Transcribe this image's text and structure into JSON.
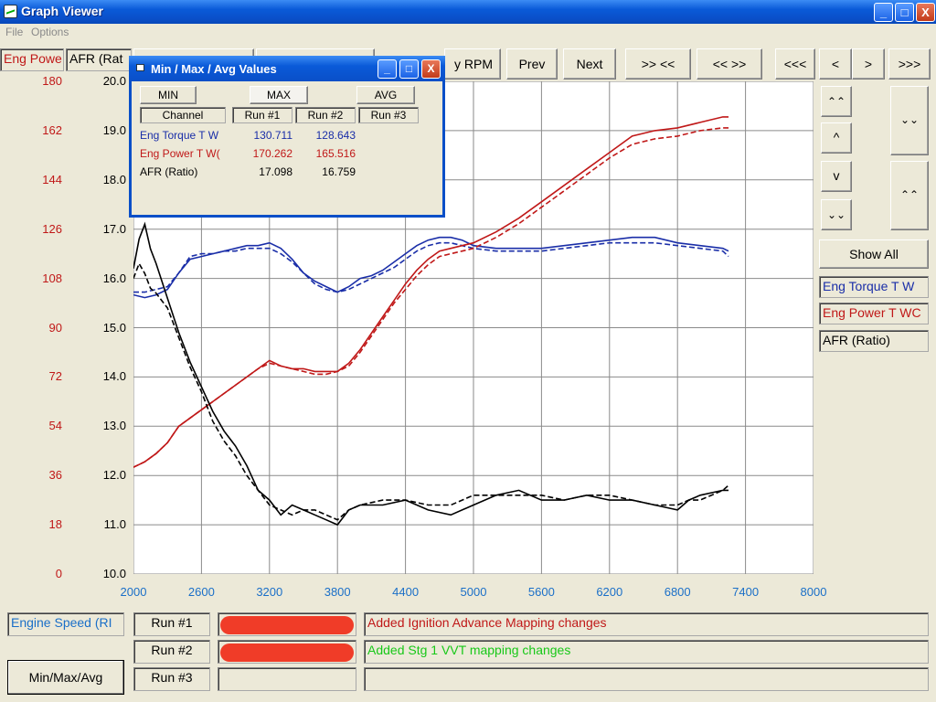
{
  "window": {
    "title": "Graph Viewer",
    "minimize": "_",
    "maximize": "□",
    "close": "X"
  },
  "menu": [
    "File",
    "Options"
  ],
  "toolbar": {
    "channel_fields": [
      "Eng Powe",
      "AFR (Rat"
    ],
    "partial_button": "y RPM",
    "buttons": [
      "Prev",
      "Next",
      ">> <<",
      "<< >>",
      "<<<",
      "<",
      ">",
      ">>>"
    ]
  },
  "side_buttons": {
    "show_all": "Show All",
    "up_fast": "⌃⌃",
    "up": "^",
    "down": "v",
    "down_fast": "⌄⌄",
    "zoom_in": "⌄⌄",
    "zoom_out": "⌃⌃"
  },
  "legend": {
    "items": [
      {
        "label": "Eng Torque T W",
        "color": "#1a2ea8"
      },
      {
        "label": "Eng Power T WC",
        "color": "#c01818"
      },
      {
        "label": "AFR (Ratio)",
        "color": "#000000"
      }
    ]
  },
  "axes": {
    "left_power_ticks": [
      "180",
      "162",
      "144",
      "126",
      "108",
      "90",
      "72",
      "54",
      "36",
      "18",
      "0"
    ],
    "left_afr_ticks": [
      "20.0",
      "19.0",
      "18.0",
      "17.0",
      "16.0",
      "15.0",
      "14.0",
      "13.0",
      "12.0",
      "11.0",
      "10.0"
    ],
    "x_ticks": [
      "2000",
      "2600",
      "3200",
      "3800",
      "4400",
      "5000",
      "5600",
      "6200",
      "6800",
      "7400",
      "8000"
    ]
  },
  "popup": {
    "title": "Min / Max / Avg Values",
    "tabs": [
      "MIN",
      "MAX",
      "AVG"
    ],
    "headers": [
      "Channel",
      "Run #1",
      "Run #2",
      "Run #3"
    ],
    "rows": [
      {
        "channel": "Eng Torque T W",
        "run1": "130.711",
        "run2": "128.643",
        "run3": "",
        "color": "#1a2ea8"
      },
      {
        "channel": "Eng Power T W(",
        "run1": "170.262",
        "run2": "165.516",
        "run3": "",
        "color": "#c01818"
      },
      {
        "channel": "AFR (Ratio)",
        "run1": "17.098",
        "run2": "16.759",
        "run3": "",
        "color": "#000000"
      }
    ]
  },
  "bottom": {
    "x_channel": "Engine Speed (RI",
    "runs": [
      {
        "label": "Run #1",
        "color": "#c01818",
        "note": "Added Ignition Advance Mapping changes",
        "redacted": true
      },
      {
        "label": "Run #2",
        "color": "#18c818",
        "note": "Added Stg 1 VVT mapping changes",
        "redacted": true
      },
      {
        "label": "Run #3",
        "color": "#1a2ea8",
        "note": "",
        "redacted": false
      }
    ],
    "minmax_button": "Min/Max/Avg"
  },
  "chart_data": {
    "type": "line",
    "xlim": [
      2000,
      8000
    ],
    "x_ticks": [
      2000,
      2600,
      3200,
      3800,
      4400,
      5000,
      5600,
      6200,
      6800,
      7400,
      8000
    ],
    "power_ylim": [
      0,
      180
    ],
    "afr_ylim": [
      10,
      20
    ],
    "grid": true,
    "series": [
      {
        "name": "Eng Torque T W",
        "style": "solid",
        "color": "#1a2ea8",
        "axis": "power",
        "x": [
          2000,
          2100,
          2200,
          2300,
          2400,
          2500,
          2600,
          2700,
          2800,
          2900,
          3000,
          3100,
          3200,
          3300,
          3400,
          3500,
          3600,
          3700,
          3800,
          3900,
          4000,
          4100,
          4200,
          4300,
          4400,
          4500,
          4600,
          4700,
          4800,
          4900,
          5000,
          5200,
          5400,
          5600,
          5800,
          6000,
          6200,
          6400,
          6600,
          6800,
          7000,
          7200,
          7250
        ],
        "y": [
          102,
          101,
          102,
          104,
          110,
          115,
          116,
          117,
          118,
          119,
          120,
          120,
          121,
          119,
          115,
          110,
          107,
          105,
          103,
          105,
          108,
          109,
          111,
          114,
          117,
          120,
          122,
          123,
          123,
          122,
          120,
          119,
          119,
          119,
          120,
          121,
          122,
          123,
          123,
          121,
          120,
          119,
          118
        ]
      },
      {
        "name": "Eng Torque T W",
        "style": "dashed",
        "color": "#1a2ea8",
        "axis": "power",
        "x": [
          2000,
          2100,
          2200,
          2300,
          2400,
          2500,
          2600,
          2700,
          2800,
          2900,
          3000,
          3100,
          3200,
          3300,
          3400,
          3500,
          3600,
          3700,
          3800,
          3900,
          4000,
          4100,
          4200,
          4300,
          4400,
          4500,
          4600,
          4700,
          4800,
          4900,
          5000,
          5200,
          5400,
          5600,
          5800,
          6000,
          6200,
          6400,
          6600,
          6800,
          7000,
          7200,
          7250
        ],
        "y": [
          103,
          103,
          104,
          105,
          110,
          116,
          117,
          117,
          118,
          118,
          119,
          119,
          119,
          117,
          114,
          110,
          106,
          104,
          103,
          104,
          106,
          108,
          110,
          112,
          115,
          118,
          120,
          121,
          121,
          120,
          119,
          118,
          118,
          118,
          119,
          120,
          121,
          121,
          121,
          120,
          119,
          118,
          116
        ]
      },
      {
        "name": "Eng Power T WC",
        "style": "solid",
        "color": "#c01818",
        "axis": "power",
        "x": [
          2000,
          2100,
          2200,
          2300,
          2400,
          2500,
          2600,
          2700,
          2800,
          2900,
          3000,
          3100,
          3200,
          3300,
          3400,
          3500,
          3600,
          3700,
          3800,
          3900,
          4000,
          4100,
          4200,
          4300,
          4400,
          4500,
          4600,
          4700,
          4800,
          4900,
          5000,
          5200,
          5400,
          5600,
          5800,
          6000,
          6200,
          6400,
          6600,
          6800,
          7000,
          7200,
          7250
        ],
        "y": [
          39,
          41,
          44,
          48,
          54,
          57,
          60,
          63,
          66,
          69,
          72,
          75,
          78,
          76,
          75,
          75,
          74,
          74,
          74,
          77,
          82,
          88,
          94,
          100,
          106,
          111,
          115,
          118,
          119,
          120,
          121,
          125,
          130,
          136,
          142,
          148,
          154,
          160,
          162,
          163,
          165,
          167,
          167
        ]
      },
      {
        "name": "Eng Power T WC",
        "style": "dashed",
        "color": "#c01818",
        "axis": "power",
        "x": [
          2000,
          2100,
          2200,
          2300,
          2400,
          2500,
          2600,
          2700,
          2800,
          2900,
          3000,
          3100,
          3200,
          3300,
          3400,
          3500,
          3600,
          3700,
          3800,
          3900,
          4000,
          4100,
          4200,
          4300,
          4400,
          4500,
          4600,
          4700,
          4800,
          4900,
          5000,
          5200,
          5400,
          5600,
          5800,
          6000,
          6200,
          6400,
          6600,
          6800,
          7000,
          7200,
          7250
        ],
        "y": [
          39,
          41,
          44,
          48,
          54,
          57,
          60,
          63,
          66,
          69,
          72,
          75,
          77,
          76,
          75,
          74,
          73,
          73,
          74,
          76,
          81,
          87,
          93,
          99,
          104,
          109,
          113,
          116,
          117,
          118,
          119,
          123,
          128,
          134,
          140,
          146,
          152,
          157,
          159,
          160,
          162,
          163,
          163
        ]
      },
      {
        "name": "AFR (Ratio)",
        "style": "solid",
        "color": "#000000",
        "axis": "afr",
        "x": [
          2000,
          2050,
          2100,
          2150,
          2200,
          2300,
          2400,
          2500,
          2600,
          2700,
          2800,
          2900,
          3000,
          3100,
          3200,
          3300,
          3400,
          3500,
          3600,
          3700,
          3800,
          3900,
          4000,
          4200,
          4400,
          4600,
          4800,
          5000,
          5200,
          5400,
          5600,
          5800,
          6000,
          6200,
          6400,
          6600,
          6800,
          6900,
          7000,
          7200,
          7250
        ],
        "y": [
          16.2,
          16.8,
          17.1,
          16.6,
          16.3,
          15.6,
          14.9,
          14.3,
          13.8,
          13.3,
          12.9,
          12.6,
          12.2,
          11.7,
          11.5,
          11.2,
          11.4,
          11.3,
          11.2,
          11.1,
          11.0,
          11.3,
          11.4,
          11.4,
          11.5,
          11.3,
          11.2,
          11.4,
          11.6,
          11.7,
          11.5,
          11.5,
          11.6,
          11.5,
          11.5,
          11.4,
          11.3,
          11.5,
          11.6,
          11.7,
          11.7
        ]
      },
      {
        "name": "AFR (Ratio)",
        "style": "dashed",
        "color": "#000000",
        "axis": "afr",
        "x": [
          2000,
          2050,
          2100,
          2150,
          2200,
          2300,
          2400,
          2500,
          2600,
          2700,
          2800,
          2900,
          3000,
          3100,
          3200,
          3300,
          3400,
          3500,
          3600,
          3700,
          3800,
          3900,
          4000,
          4200,
          4400,
          4600,
          4800,
          5000,
          5200,
          5400,
          5600,
          5800,
          6000,
          6200,
          6400,
          6600,
          6800,
          6900,
          7000,
          7200,
          7250
        ],
        "y": [
          16.0,
          16.3,
          16.1,
          15.8,
          15.7,
          15.4,
          14.8,
          14.2,
          13.7,
          13.1,
          12.7,
          12.4,
          12.0,
          11.7,
          11.4,
          11.3,
          11.2,
          11.3,
          11.3,
          11.2,
          11.1,
          11.3,
          11.4,
          11.5,
          11.5,
          11.4,
          11.4,
          11.6,
          11.6,
          11.6,
          11.6,
          11.5,
          11.6,
          11.6,
          11.5,
          11.4,
          11.4,
          11.5,
          11.5,
          11.7,
          11.8
        ]
      }
    ]
  }
}
